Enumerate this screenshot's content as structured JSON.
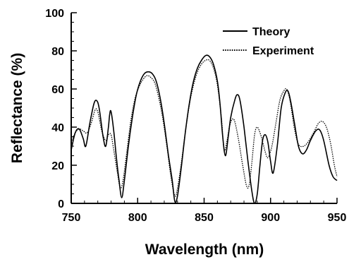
{
  "chart_data": {
    "type": "line",
    "title": "",
    "xlabel": "Wavelength (nm)",
    "ylabel": "Reflectance (%)",
    "xlim": [
      750,
      950
    ],
    "ylim": [
      0,
      100
    ],
    "x_ticks": [
      "750",
      "800",
      "850",
      "900",
      "950"
    ],
    "y_ticks": [
      "0",
      "20",
      "40",
      "60",
      "80",
      "100"
    ],
    "grid": false,
    "legend_position": "top-right",
    "series": [
      {
        "name": "Theory",
        "style": "solid",
        "color": "#000000",
        "points": [
          [
            750,
            28
          ],
          [
            753,
            37
          ],
          [
            756,
            39
          ],
          [
            759,
            34
          ],
          [
            761,
            30
          ],
          [
            764,
            42
          ],
          [
            767,
            52
          ],
          [
            769,
            54
          ],
          [
            771,
            50
          ],
          [
            774,
            35
          ],
          [
            776,
            30
          ],
          [
            778,
            40
          ],
          [
            779,
            47
          ],
          [
            780,
            48
          ],
          [
            782,
            38
          ],
          [
            784,
            24
          ],
          [
            786,
            12
          ],
          [
            788,
            3
          ],
          [
            790,
            12
          ],
          [
            793,
            30
          ],
          [
            796,
            45
          ],
          [
            799,
            57
          ],
          [
            802,
            64
          ],
          [
            805,
            68
          ],
          [
            808,
            69
          ],
          [
            811,
            68
          ],
          [
            814,
            64
          ],
          [
            817,
            55
          ],
          [
            820,
            42
          ],
          [
            823,
            26
          ],
          [
            826,
            12
          ],
          [
            828,
            1
          ],
          [
            830,
            4
          ],
          [
            833,
            20
          ],
          [
            836,
            38
          ],
          [
            839,
            53
          ],
          [
            842,
            64
          ],
          [
            845,
            71
          ],
          [
            848,
            75
          ],
          [
            851,
            77.5
          ],
          [
            854,
            77
          ],
          [
            857,
            73
          ],
          [
            860,
            64
          ],
          [
            862,
            52
          ],
          [
            864,
            35
          ],
          [
            866,
            25
          ],
          [
            868,
            34
          ],
          [
            870,
            45
          ],
          [
            873,
            54
          ],
          [
            875,
            57
          ],
          [
            877,
            54
          ],
          [
            880,
            40
          ],
          [
            883,
            22
          ],
          [
            886,
            6
          ],
          [
            888,
            0
          ],
          [
            890,
            5
          ],
          [
            892,
            20
          ],
          [
            894,
            33
          ],
          [
            896,
            36
          ],
          [
            898,
            32
          ],
          [
            900,
            22
          ],
          [
            902,
            16
          ],
          [
            905,
            30
          ],
          [
            908,
            50
          ],
          [
            911,
            58
          ],
          [
            913,
            59
          ],
          [
            915,
            54
          ],
          [
            918,
            42
          ],
          [
            921,
            30
          ],
          [
            924,
            26
          ],
          [
            927,
            28
          ],
          [
            930,
            33
          ],
          [
            934,
            38
          ],
          [
            937,
            38.5
          ],
          [
            940,
            33
          ],
          [
            944,
            20
          ],
          [
            947,
            14
          ],
          [
            950,
            12
          ]
        ]
      },
      {
        "name": "Experiment",
        "style": "dotted",
        "color": "#000000",
        "points": [
          [
            750,
            32
          ],
          [
            753,
            37
          ],
          [
            756,
            39
          ],
          [
            759,
            38
          ],
          [
            762,
            37
          ],
          [
            765,
            42
          ],
          [
            768,
            49
          ],
          [
            770,
            48
          ],
          [
            773,
            38
          ],
          [
            776,
            33
          ],
          [
            778,
            36
          ],
          [
            780,
            36
          ],
          [
            782,
            28
          ],
          [
            785,
            15
          ],
          [
            787,
            8
          ],
          [
            789,
            12
          ],
          [
            792,
            28
          ],
          [
            795,
            44
          ],
          [
            798,
            55
          ],
          [
            801,
            61
          ],
          [
            804,
            65
          ],
          [
            807,
            67
          ],
          [
            810,
            66
          ],
          [
            813,
            63
          ],
          [
            816,
            55
          ],
          [
            819,
            44
          ],
          [
            822,
            30
          ],
          [
            825,
            14
          ],
          [
            828,
            4
          ],
          [
            830,
            8
          ],
          [
            833,
            22
          ],
          [
            836,
            38
          ],
          [
            839,
            52
          ],
          [
            842,
            62
          ],
          [
            845,
            69
          ],
          [
            848,
            73
          ],
          [
            851,
            75
          ],
          [
            854,
            75
          ],
          [
            857,
            71
          ],
          [
            860,
            62
          ],
          [
            863,
            45
          ],
          [
            865,
            28
          ],
          [
            867,
            32
          ],
          [
            869,
            40
          ],
          [
            871,
            44
          ],
          [
            873,
            43
          ],
          [
            876,
            33
          ],
          [
            879,
            20
          ],
          [
            882,
            9
          ],
          [
            884,
            10
          ],
          [
            886,
            22
          ],
          [
            888,
            36
          ],
          [
            890,
            40
          ],
          [
            893,
            35
          ],
          [
            896,
            27
          ],
          [
            898,
            24
          ],
          [
            901,
            30
          ],
          [
            904,
            42
          ],
          [
            907,
            54
          ],
          [
            910,
            59
          ],
          [
            912,
            60
          ],
          [
            914,
            56
          ],
          [
            916,
            48
          ],
          [
            918,
            39
          ],
          [
            921,
            31
          ],
          [
            925,
            30
          ],
          [
            929,
            33
          ],
          [
            933,
            38
          ],
          [
            936,
            42
          ],
          [
            939,
            43
          ],
          [
            942,
            40
          ],
          [
            945,
            32
          ],
          [
            948,
            20
          ],
          [
            950,
            14
          ]
        ]
      }
    ]
  }
}
